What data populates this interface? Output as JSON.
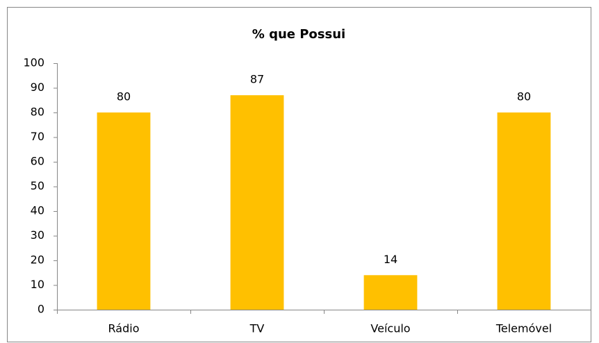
{
  "chart_data": {
    "type": "bar",
    "title": "% que Possui",
    "categories": [
      "Rádio",
      "TV",
      "Veículo",
      "Telemóvel"
    ],
    "values": [
      80,
      87,
      14,
      80
    ],
    "color": "#ffc000",
    "ylim": [
      0,
      100
    ],
    "yticks": [
      0,
      10,
      20,
      30,
      40,
      50,
      60,
      70,
      80,
      90,
      100
    ],
    "grid": false
  }
}
